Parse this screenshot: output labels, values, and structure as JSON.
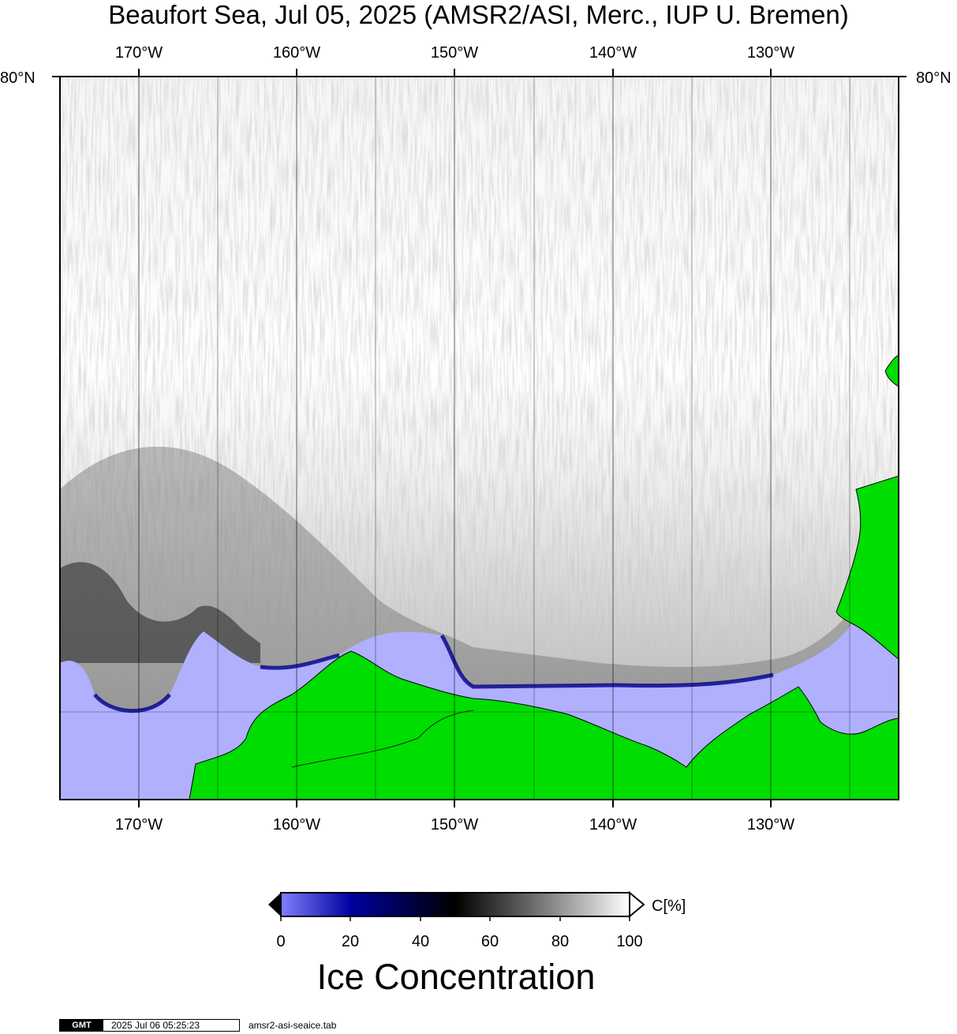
{
  "title": "Beaufort Sea, Jul 05, 2025 (AMSR2/ASI, Merc., IUP U. Bremen)",
  "map": {
    "lon_labels": [
      "170°W",
      "160°W",
      "150°W",
      "140°W",
      "130°W"
    ],
    "lat_labels": {
      "left": "80°N",
      "right": "80°N"
    },
    "colors": {
      "open_water": "#b0b0ff",
      "land": "#00dd00",
      "frame": "#000000"
    }
  },
  "colorbar": {
    "unit_label": "C[%]",
    "tick_labels": [
      "0",
      "20",
      "40",
      "60",
      "80",
      "100"
    ],
    "title": "Ice Concentration",
    "color_stops": [
      {
        "value": 0,
        "color": "#8080ff"
      },
      {
        "value": 20,
        "color": "#0000a0"
      },
      {
        "value": 50,
        "color": "#000000"
      },
      {
        "value": 70,
        "color": "#606060"
      },
      {
        "value": 90,
        "color": "#c8c8c8"
      },
      {
        "value": 100,
        "color": "#ffffff"
      }
    ]
  },
  "footer": {
    "logo": "GMT",
    "timestamp": "2025 Jul 06 05:25:23",
    "script_name": "amsr2-asi-seaice.tab"
  }
}
